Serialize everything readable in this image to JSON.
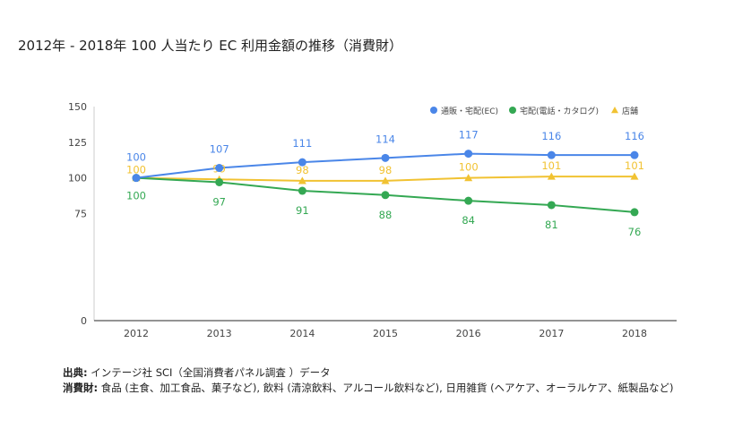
{
  "title": "2012年 - 2018年 100 人当たり EC 利用金額の推移（消費財）",
  "chart_data": {
    "type": "line",
    "x": [
      "2012",
      "2013",
      "2014",
      "2015",
      "2016",
      "2017",
      "2018"
    ],
    "ylim": [
      0,
      150
    ],
    "yticks": [
      0,
      75,
      100,
      125,
      150
    ],
    "grid": false,
    "legend": "top-right",
    "series": [
      {
        "name": "通販・宅配(EC)",
        "color": "#4a86e8",
        "marker": "circle",
        "values": [
          100,
          107,
          111,
          114,
          117,
          116,
          116
        ]
      },
      {
        "name": "宅配(電話・カタログ)",
        "color": "#34a853",
        "marker": "circle",
        "values": [
          100,
          97,
          91,
          88,
          84,
          81,
          76
        ]
      },
      {
        "name": "店舗",
        "color": "#f1c232",
        "marker": "triangle",
        "values": [
          100,
          99,
          98,
          98,
          100,
          101,
          101
        ]
      }
    ]
  },
  "footer": {
    "source_label": "出典:",
    "source_text": " インテージ社 SCI（全国消費者パネル調査 ）データ",
    "goods_label": "消費財:",
    "goods_text": " 食品 (主食、加工食品、菓子など), 飲料 (清涼飲料、アルコール飲料など), 日用雑貨 (ヘアケア、オーラルケア、紙製品など)"
  }
}
